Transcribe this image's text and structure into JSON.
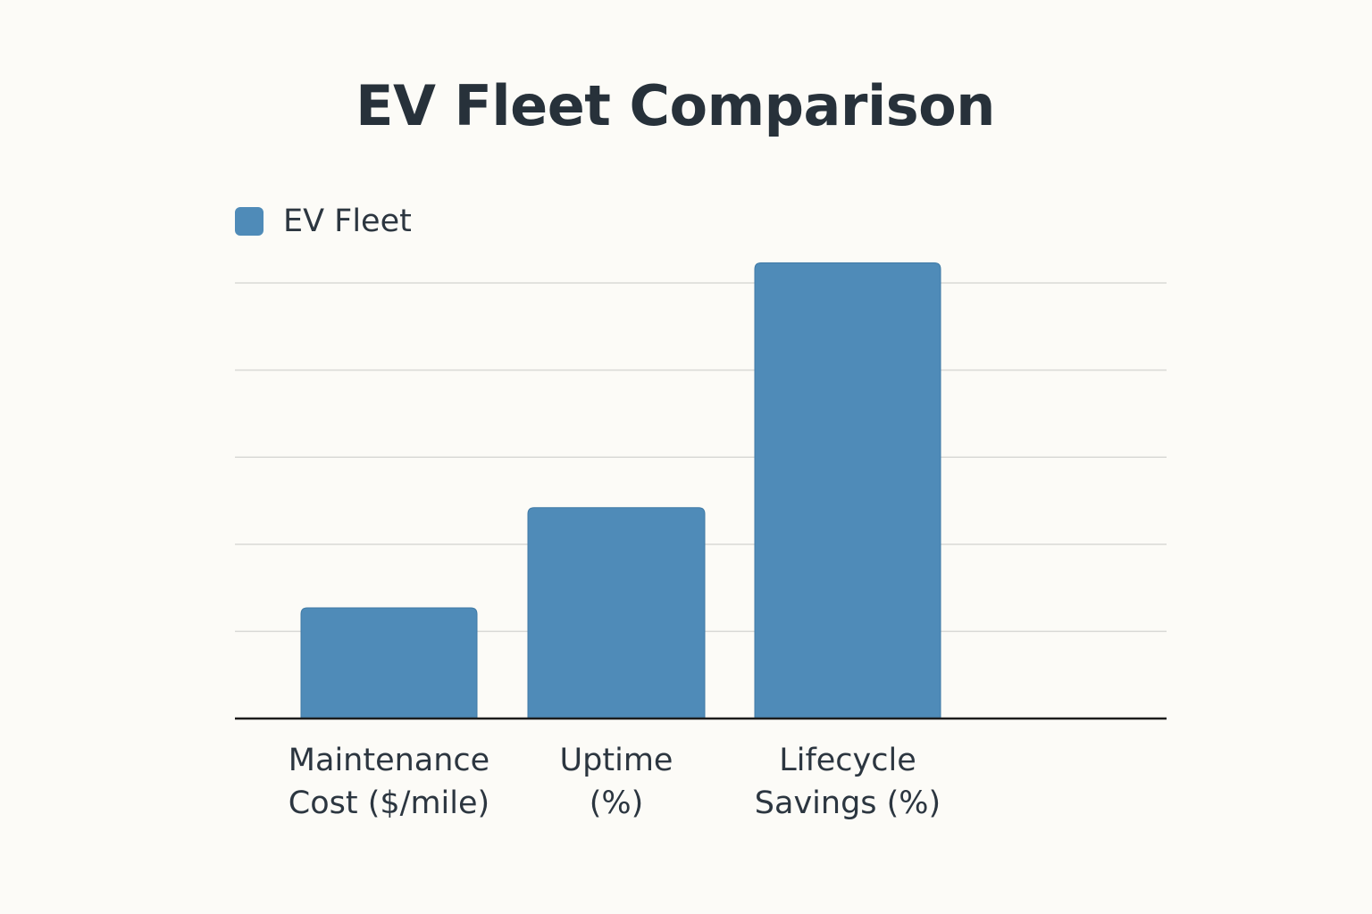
{
  "chart_data": {
    "type": "bar",
    "title": "EV Fleet Comparison",
    "categories": [
      [
        "Maintenance",
        "Cost ($/mile)"
      ],
      [
        "Uptime",
        "(%)"
      ],
      [
        "Lifecycle",
        "Savings (%)"
      ]
    ],
    "series": [
      {
        "name": "EV Fleet",
        "color": "#4f8bb8",
        "values": [
          1.27,
          2.42,
          5.23
        ]
      }
    ],
    "ylim": [
      0,
      5
    ],
    "gridlines": [
      1,
      2,
      3,
      4,
      5
    ],
    "grid": true,
    "legend_position": "top-left",
    "xlabel": "",
    "ylabel": ""
  }
}
